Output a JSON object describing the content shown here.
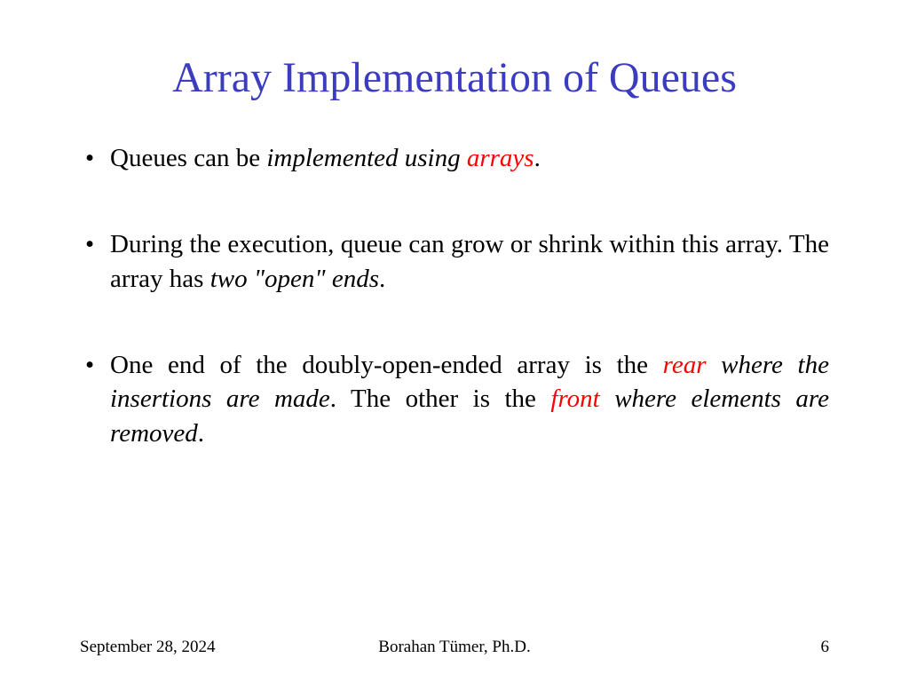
{
  "title": "Array Implementation of Queues",
  "bullets": {
    "b1": {
      "t1": "Queues can be ",
      "t2": "implemented using ",
      "t3": "arrays",
      "t4": "."
    },
    "b2": {
      "t1": "During the execution, queue can grow or shrink within this array.  The array has ",
      "t2": "two \"open\" ends",
      "t3": "."
    },
    "b3": {
      "t1": "One end of the doubly-open-ended array is the ",
      "t2": "rear",
      "t3": " where the insertions are made",
      "t4": ".  The other is the ",
      "t5": "front",
      "t6": " where elements are removed",
      "t7": "."
    }
  },
  "footer": {
    "date": "September 28, 2024",
    "author": "Borahan Tümer, Ph.D.",
    "page": "6"
  },
  "colors": {
    "title": "#3c3cc0",
    "highlight": "#ff0000",
    "text": "#000000",
    "bg": "#ffffff"
  }
}
